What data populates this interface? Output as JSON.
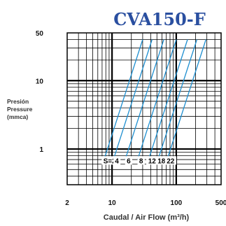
{
  "chart_data": {
    "type": "line",
    "title": "CVA150-F",
    "title_color": "#2a4fa0",
    "line_color": "#1e8fd0",
    "xscale": "log",
    "yscale": "log",
    "xlim": [
      2,
      500
    ],
    "ylim": [
      0.3,
      50
    ],
    "xticks": [
      2,
      10,
      100,
      500
    ],
    "xtick_labels": [
      "2",
      "10",
      "100",
      "500"
    ],
    "yticks": [
      1,
      10,
      50
    ],
    "ytick_labels": [
      "1",
      "10",
      "50"
    ],
    "xlabel": "Caudal / Air Flow (m³/h)",
    "ylabel_lines": [
      "Presión",
      "Pressure",
      "(mmca)"
    ],
    "grid": true,
    "series": [
      {
        "name": "S=2",
        "x": [
          7.5,
          30
        ],
        "y": [
          0.7,
          40
        ]
      },
      {
        "name": "4",
        "x": [
          10.5,
          42
        ],
        "y": [
          0.7,
          40
        ]
      },
      {
        "name": "6",
        "x": [
          16,
          64
        ],
        "y": [
          0.7,
          40
        ]
      },
      {
        "name": "8",
        "x": [
          25,
          100
        ],
        "y": [
          0.7,
          40
        ]
      },
      {
        "name": "12",
        "x": [
          37,
          150
        ],
        "y": [
          0.7,
          40
        ]
      },
      {
        "name": "18",
        "x": [
          52,
          210
        ],
        "y": [
          0.7,
          40
        ]
      },
      {
        "name": "22",
        "x": [
          72,
          290
        ],
        "y": [
          0.7,
          40
        ]
      }
    ],
    "s_labels": [
      "S=2",
      "4",
      "6",
      "8",
      "12",
      "18",
      "22"
    ]
  }
}
